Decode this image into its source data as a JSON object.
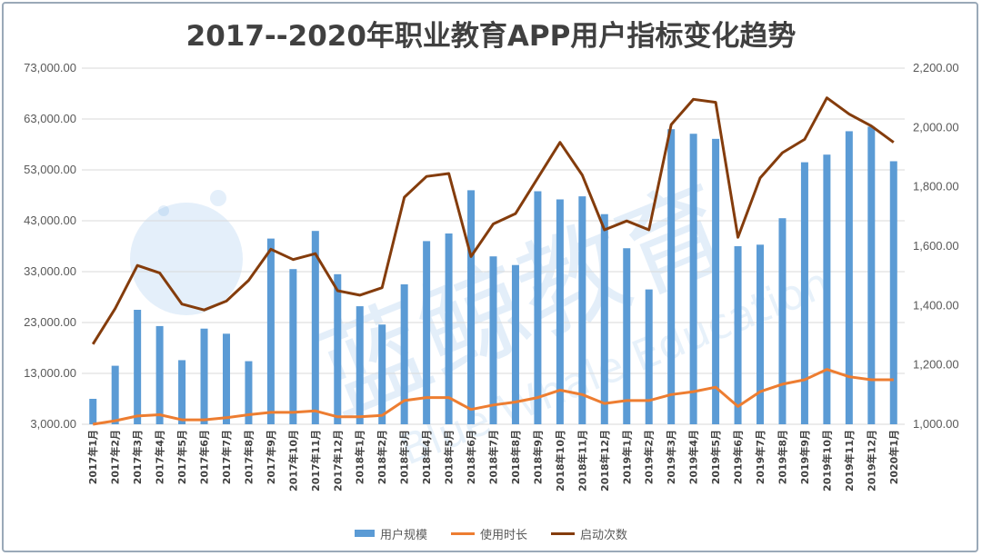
{
  "colors": {
    "bar": "#5b9bd5",
    "duration_line": "#ed7d31",
    "launch_line": "#843c0c",
    "grid": "#d9d9d9",
    "watermark": "#2f86d6"
  },
  "watermark": {
    "text_cn": "蓝鲸教育",
    "text_en": "Blue Whale Education"
  },
  "chart_data": {
    "type": "bar",
    "title": "2017--2020年职业教育APP用户指标变化趋势",
    "categories": [
      "2017年1月",
      "2017年2月",
      "2017年3月",
      "2017年4月",
      "2017年5月",
      "2017年6月",
      "2017年7月",
      "2017年8月",
      "2017年9月",
      "2017年10月",
      "2017年11月",
      "2017年12月",
      "2018年1月",
      "2018年2月",
      "2018年3月",
      "2018年4月",
      "2018年5月",
      "2018年6月",
      "2018年7月",
      "2018年8月",
      "2018年9月",
      "2018年10月",
      "2018年11月",
      "2018年12月",
      "2019年1月",
      "2019年2月",
      "2019年3月",
      "2019年4月",
      "2019年5月",
      "2019年6月",
      "2019年7月",
      "2019年8月",
      "2019年9月",
      "2019年10月",
      "2019年11月",
      "2019年12月",
      "2020年1月"
    ],
    "left_axis": {
      "ylim": [
        3000,
        73000
      ],
      "ticks": [
        3000,
        13000,
        23000,
        33000,
        43000,
        53000,
        63000,
        73000
      ],
      "tick_labels": [
        "3,000.00",
        "13,000.00",
        "23,000.00",
        "33,000.00",
        "43,000.00",
        "53,000.00",
        "63,000.00",
        "73,000.00"
      ]
    },
    "right_axis": {
      "ylim": [
        1000,
        2200
      ],
      "ticks": [
        1000,
        1200,
        1400,
        1600,
        1800,
        2000,
        2200
      ],
      "tick_labels": [
        "1,000.00",
        "1,200.00",
        "1,400.00",
        "1,600.00",
        "1,800.00",
        "2,000.00",
        "2,200.00"
      ]
    },
    "series": [
      {
        "name": "用户规模",
        "kind": "bar",
        "axis": "left",
        "values": [
          8000,
          14500,
          25500,
          22300,
          15600,
          21800,
          20800,
          15400,
          39500,
          33500,
          41000,
          32500,
          26200,
          22600,
          30500,
          39000,
          40500,
          49000,
          36000,
          34300,
          48800,
          47200,
          47800,
          44300,
          37600,
          29500,
          61000,
          60100,
          59100,
          38000,
          38300,
          43500,
          54500,
          56000,
          60600,
          61500,
          54700
        ]
      },
      {
        "name": "使用时长",
        "kind": "line",
        "axis": "right",
        "values": [
          1000,
          1012,
          1028,
          1032,
          1015,
          1015,
          1022,
          1032,
          1040,
          1040,
          1045,
          1025,
          1025,
          1030,
          1080,
          1090,
          1090,
          1050,
          1065,
          1075,
          1090,
          1115,
          1100,
          1070,
          1080,
          1080,
          1100,
          1110,
          1125,
          1060,
          1110,
          1135,
          1150,
          1185,
          1160,
          1150,
          1150
        ]
      },
      {
        "name": "启动次数",
        "kind": "line",
        "axis": "right",
        "values": [
          1270,
          1390,
          1535,
          1510,
          1405,
          1385,
          1415,
          1485,
          1590,
          1555,
          1575,
          1450,
          1435,
          1460,
          1765,
          1835,
          1845,
          1565,
          1675,
          1710,
          1830,
          1950,
          1840,
          1655,
          1685,
          1655,
          2010,
          2095,
          2085,
          1630,
          1830,
          1915,
          1960,
          2100,
          2045,
          2005,
          1950
        ]
      }
    ]
  }
}
